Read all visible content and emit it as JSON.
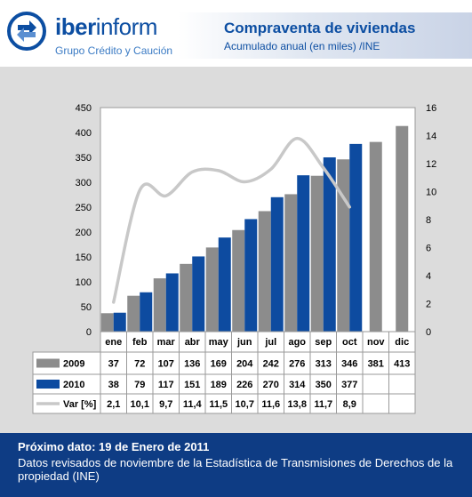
{
  "header": {
    "brand_bold": "iber",
    "brand_rest": "inform",
    "brand_sub": "Grupo Crédito y Caución",
    "title": "Compraventa de viviendas",
    "subtitle": "Acumulado anual (en miles) /INE"
  },
  "colors": {
    "series_2009": "#8c8c8c",
    "series_2010": "#0d4ba0",
    "series_var": "#c8c8c8",
    "brand_blue": "#0c4ea2",
    "footer_bg": "#0e3c84"
  },
  "chart_data": {
    "type": "bar",
    "categories": [
      "ene",
      "feb",
      "mar",
      "abr",
      "may",
      "jun",
      "jul",
      "ago",
      "sep",
      "oct",
      "nov",
      "dic"
    ],
    "series": [
      {
        "name": "2009",
        "type": "bar",
        "axis": "left",
        "values": [
          37,
          72,
          107,
          136,
          169,
          204,
          242,
          276,
          313,
          346,
          381,
          413
        ]
      },
      {
        "name": "2010",
        "type": "bar",
        "axis": "left",
        "values": [
          38,
          79,
          117,
          151,
          189,
          226,
          270,
          314,
          350,
          377,
          null,
          null
        ]
      },
      {
        "name": "Var [%]",
        "type": "line",
        "axis": "right",
        "values": [
          2.1,
          10.1,
          9.7,
          11.4,
          11.5,
          10.7,
          11.6,
          13.8,
          11.7,
          8.9,
          null,
          null
        ]
      }
    ],
    "table_rows": [
      {
        "label": "2009",
        "cells": [
          "37",
          "72",
          "107",
          "136",
          "169",
          "204",
          "242",
          "276",
          "313",
          "346",
          "381",
          "413"
        ]
      },
      {
        "label": "2010",
        "cells": [
          "38",
          "79",
          "117",
          "151",
          "189",
          "226",
          "270",
          "314",
          "350",
          "377",
          "",
          ""
        ]
      },
      {
        "label": "Var [%]",
        "cells": [
          "2,1",
          "10,1",
          "9,7",
          "11,4",
          "11,5",
          "10,7",
          "11,6",
          "13,8",
          "11,7",
          "8,9",
          "",
          ""
        ]
      }
    ],
    "ylim": [
      0,
      450
    ],
    "yticks": [
      "0",
      "50",
      "100",
      "150",
      "200",
      "250",
      "300",
      "350",
      "400",
      "450"
    ],
    "y2lim": [
      0,
      16
    ],
    "y2ticks": [
      "0",
      "2",
      "4",
      "6",
      "8",
      "10",
      "12",
      "14",
      "16"
    ],
    "grid": false,
    "legend": "data-table"
  },
  "footer": {
    "next_date": "Próximo dato: 19 de Enero de 2011",
    "note": "Datos revisados de noviembre de la Estadística de Transmisiones de Derechos de la propiedad (INE)"
  }
}
